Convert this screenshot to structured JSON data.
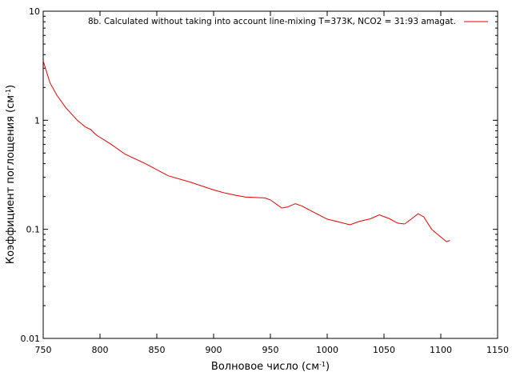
{
  "chart_data": {
    "type": "line",
    "xlabel": "Волновое число (см",
    "xlabel_sup": "-1",
    "xlabel_end": ")",
    "ylabel": "Коэффициент поглощения (см",
    "ylabel_sup": "-1",
    "ylabel_end": ")",
    "xlim": [
      750,
      1150
    ],
    "ylim": [
      0.01,
      10
    ],
    "yscale": "log",
    "grid": false,
    "legend_position": "top-right",
    "xticks": [
      750,
      800,
      850,
      900,
      950,
      1000,
      1050,
      1100,
      1150
    ],
    "yticks": [
      0.01,
      0.1,
      1,
      10
    ],
    "ytick_labels": [
      "0.01",
      "0.1",
      "1",
      "10"
    ],
    "series": [
      {
        "name": "8b. Calculated without taking into account line-mixing T=373K, NCO2 = 31:93 amagat.",
        "color": "#e00000",
        "x": [
          750,
          756,
          762,
          770,
          780,
          787,
          792,
          797,
          810,
          822,
          840,
          860,
          880,
          900,
          910,
          920,
          928,
          935,
          945,
          950,
          960,
          965,
          972,
          978,
          990,
          1000,
          1010,
          1020,
          1028,
          1038,
          1046,
          1055,
          1062,
          1068,
          1074,
          1080,
          1085,
          1092,
          1100,
          1105,
          1108
        ],
        "y": [
          3.5,
          2.2,
          1.7,
          1.3,
          1.0,
          0.87,
          0.82,
          0.73,
          0.6,
          0.49,
          0.4,
          0.31,
          0.27,
          0.23,
          0.215,
          0.205,
          0.198,
          0.196,
          0.194,
          0.186,
          0.157,
          0.16,
          0.172,
          0.163,
          0.14,
          0.124,
          0.117,
          0.11,
          0.118,
          0.125,
          0.136,
          0.125,
          0.114,
          0.112,
          0.124,
          0.139,
          0.13,
          0.1,
          0.085,
          0.077,
          0.079
        ]
      }
    ]
  }
}
